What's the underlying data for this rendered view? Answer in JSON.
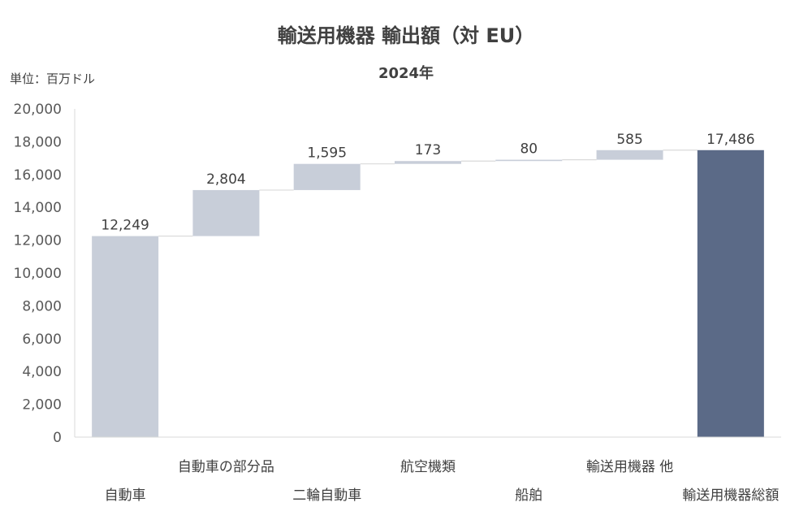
{
  "chart_data": {
    "type": "bar",
    "subtype": "waterfall",
    "title": "輸送用機器 輸出額（対 EU）",
    "subtitle": "2024年",
    "unit_label": "単位：百万ドル",
    "categories": [
      "自動車",
      "自動車の部分品",
      "二輪自動車",
      "航空機類",
      "船舶",
      "輸送用機器 他",
      "輸送用機器総額"
    ],
    "values": [
      12249,
      2804,
      1595,
      173,
      80,
      585,
      17486
    ],
    "value_labels": [
      "12,249",
      "2,804",
      "1,595",
      "173",
      "80",
      "585",
      "17,486"
    ],
    "total_index": 6,
    "ylim": [
      0,
      20000
    ],
    "yticks": [
      0,
      2000,
      4000,
      6000,
      8000,
      10000,
      12000,
      14000,
      16000,
      18000,
      20000
    ],
    "ytick_labels": [
      "0",
      "2,000",
      "4,000",
      "6,000",
      "8,000",
      "10,000",
      "12,000",
      "14,000",
      "16,000",
      "18,000",
      "20,000"
    ],
    "grid": false,
    "colors": {
      "step": "#c8ced9",
      "total": "#5b6a87",
      "connector": "#d9d9d9",
      "axis": "#d9d9d9"
    }
  }
}
